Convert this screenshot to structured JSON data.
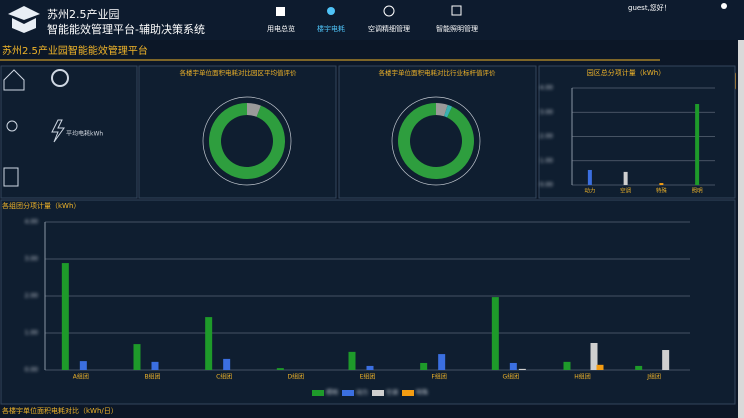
{
  "header": {
    "title_line1": "苏州2.5产业园",
    "title_line2": "智能能效管理平台-辅助决策系统",
    "greeting": "guest,您好！"
  },
  "nav": [
    "用电总览",
    "楼宇电耗",
    "空调精细管理",
    "智能照明管理"
  ],
  "page_title": "苏州2.5产业园智能能效管理平台",
  "stats": [
    "平均电耗kWh"
  ],
  "footer_title": "各楼宇单位面积电耗对比（kWh/日）",
  "chart_data": [
    {
      "type": "pie",
      "title": "各楼宇单位面积电耗对比园区平均值评价",
      "values": [
        6,
        94
      ],
      "colors": [
        "#9a9a9a",
        "#2e9e3e"
      ]
    },
    {
      "type": "pie",
      "title": "各楼宇单位面积电耗对比行业标杆值评价",
      "values": [
        5,
        2,
        93
      ],
      "colors": [
        "#9a9a9a",
        "#3ab0b0",
        "#2e9e3e"
      ]
    },
    {
      "type": "bar",
      "title": "园区总分项计量（kWh）",
      "categories": [
        "动力",
        "空调",
        "特殊",
        "照明"
      ],
      "values": [
        0.62,
        0.54,
        0.08,
        3.34
      ],
      "colors": [
        "#3b6fe0",
        "#cfcfcf",
        "#f39c12",
        "#1e9a2a"
      ],
      "ylim": [
        0,
        4
      ],
      "yticks": [
        {
          "value": 0,
          "label": "0.00"
        },
        {
          "value": 1,
          "label": "1.00"
        },
        {
          "value": 2,
          "label": "2.00"
        },
        {
          "value": 3,
          "label": "3.00"
        },
        {
          "value": 4,
          "label": "4.00"
        }
      ],
      "grid": true
    },
    {
      "type": "grouped-bar",
      "title": "各组团分项计量（kWh）",
      "categories": [
        "A组团",
        "B组团",
        "C组团",
        "D组团",
        "E组团",
        "F组团",
        "G组团",
        "H组团",
        "J组团"
      ],
      "series": [
        {
          "name": "照明",
          "color": "#1e9a2a",
          "values": [
            2.89,
            0.7,
            1.43,
            0.05,
            0.49,
            0.19,
            1.97,
            0.22,
            0.11
          ]
        },
        {
          "name": "动力",
          "color": "#3b6fe0",
          "values": [
            0.24,
            0.22,
            0.3,
            0,
            0.11,
            0.43,
            0.19,
            0,
            0
          ]
        },
        {
          "name": "空调",
          "color": "#cfcfcf",
          "values": [
            0,
            0,
            0,
            0,
            0,
            0,
            0.03,
            0.73,
            0.54
          ]
        },
        {
          "name": "特殊",
          "color": "#f39c12",
          "values": [
            0,
            0,
            0,
            0,
            0,
            0,
            0,
            0.14,
            0
          ]
        }
      ],
      "ylim": [
        0,
        4
      ],
      "yticks": [
        {
          "value": 0,
          "label": "0.00"
        },
        {
          "value": 1,
          "label": "1.00"
        },
        {
          "value": 2,
          "label": "2.00"
        },
        {
          "value": 3,
          "label": "3.00"
        },
        {
          "value": 4,
          "label": "4.00"
        }
      ],
      "grid": true
    }
  ]
}
